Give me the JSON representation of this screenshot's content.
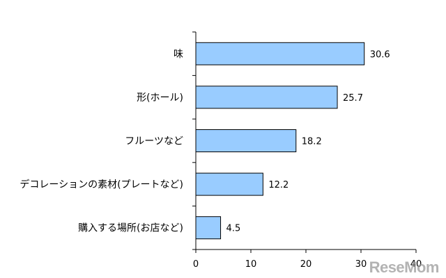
{
  "chart_data": {
    "type": "bar",
    "orientation": "horizontal",
    "categories": [
      "味",
      "形(ホール)",
      "フルーツなど",
      "デコレーションの素材(プレートなど)",
      "購入する場所(お店など)"
    ],
    "values": [
      30.6,
      25.7,
      18.2,
      12.2,
      4.5
    ],
    "value_labels": [
      "30.6",
      "25.7",
      "18.2",
      "12.2",
      "4.5"
    ],
    "xlim": [
      0,
      40
    ],
    "xticks": [
      0,
      10,
      20,
      30,
      40
    ],
    "title": "",
    "xlabel": "",
    "ylabel": "",
    "grid": false,
    "legend": "none",
    "bar_color": "#99ccff",
    "bar_edge_color": "#000000"
  },
  "watermark": "ReseMom"
}
